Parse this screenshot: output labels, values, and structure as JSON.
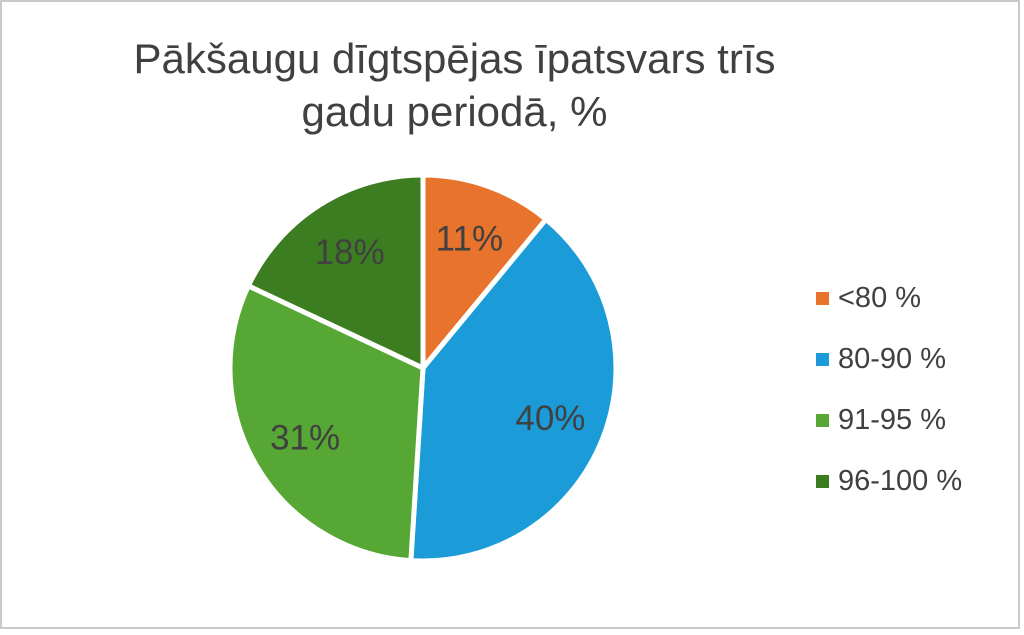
{
  "title": {
    "lines": [
      "Pākšaugu dīgtspējas īpatsvars trīs",
      "gadu periodā, %"
    ]
  },
  "chart_data": {
    "type": "pie",
    "title": "Pākšaugu dīgtspējas īpatsvars trīs gadu periodā, %",
    "categories": [
      "<80 %",
      "80-90 %",
      "91-95 %",
      "96-100 %"
    ],
    "values": [
      11,
      40,
      31,
      18
    ],
    "slice_labels": [
      "11%",
      "40%",
      "31%",
      "18%"
    ],
    "colors": [
      "#E8732D",
      "#1B9CD8",
      "#56A733",
      "#3C7D22"
    ],
    "start_angle_deg": 0,
    "direction": "clockwise",
    "legend_position": "right",
    "separator_color": "#FFFFFF",
    "label_color": "#404040",
    "title_color": "#404040",
    "frame_border_color": "#C9C9C9"
  }
}
